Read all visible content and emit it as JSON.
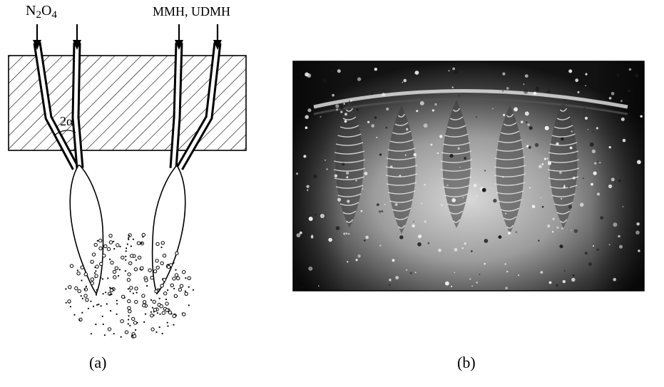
{
  "panel_a": {
    "oxidizer_label_prefix": "N",
    "oxidizer_sub_1": "2",
    "oxidizer_mid": "O",
    "oxidizer_sub_2": "4",
    "fuel_label": "MMH, UDMH",
    "angle_label": "2α",
    "caption": "(a)"
  },
  "panel_b": {
    "caption": "(b)"
  },
  "colors": {
    "ink": "#000000",
    "background": "#ffffff",
    "photo_dark": "#111111",
    "photo_light": "#cfcfcf"
  }
}
